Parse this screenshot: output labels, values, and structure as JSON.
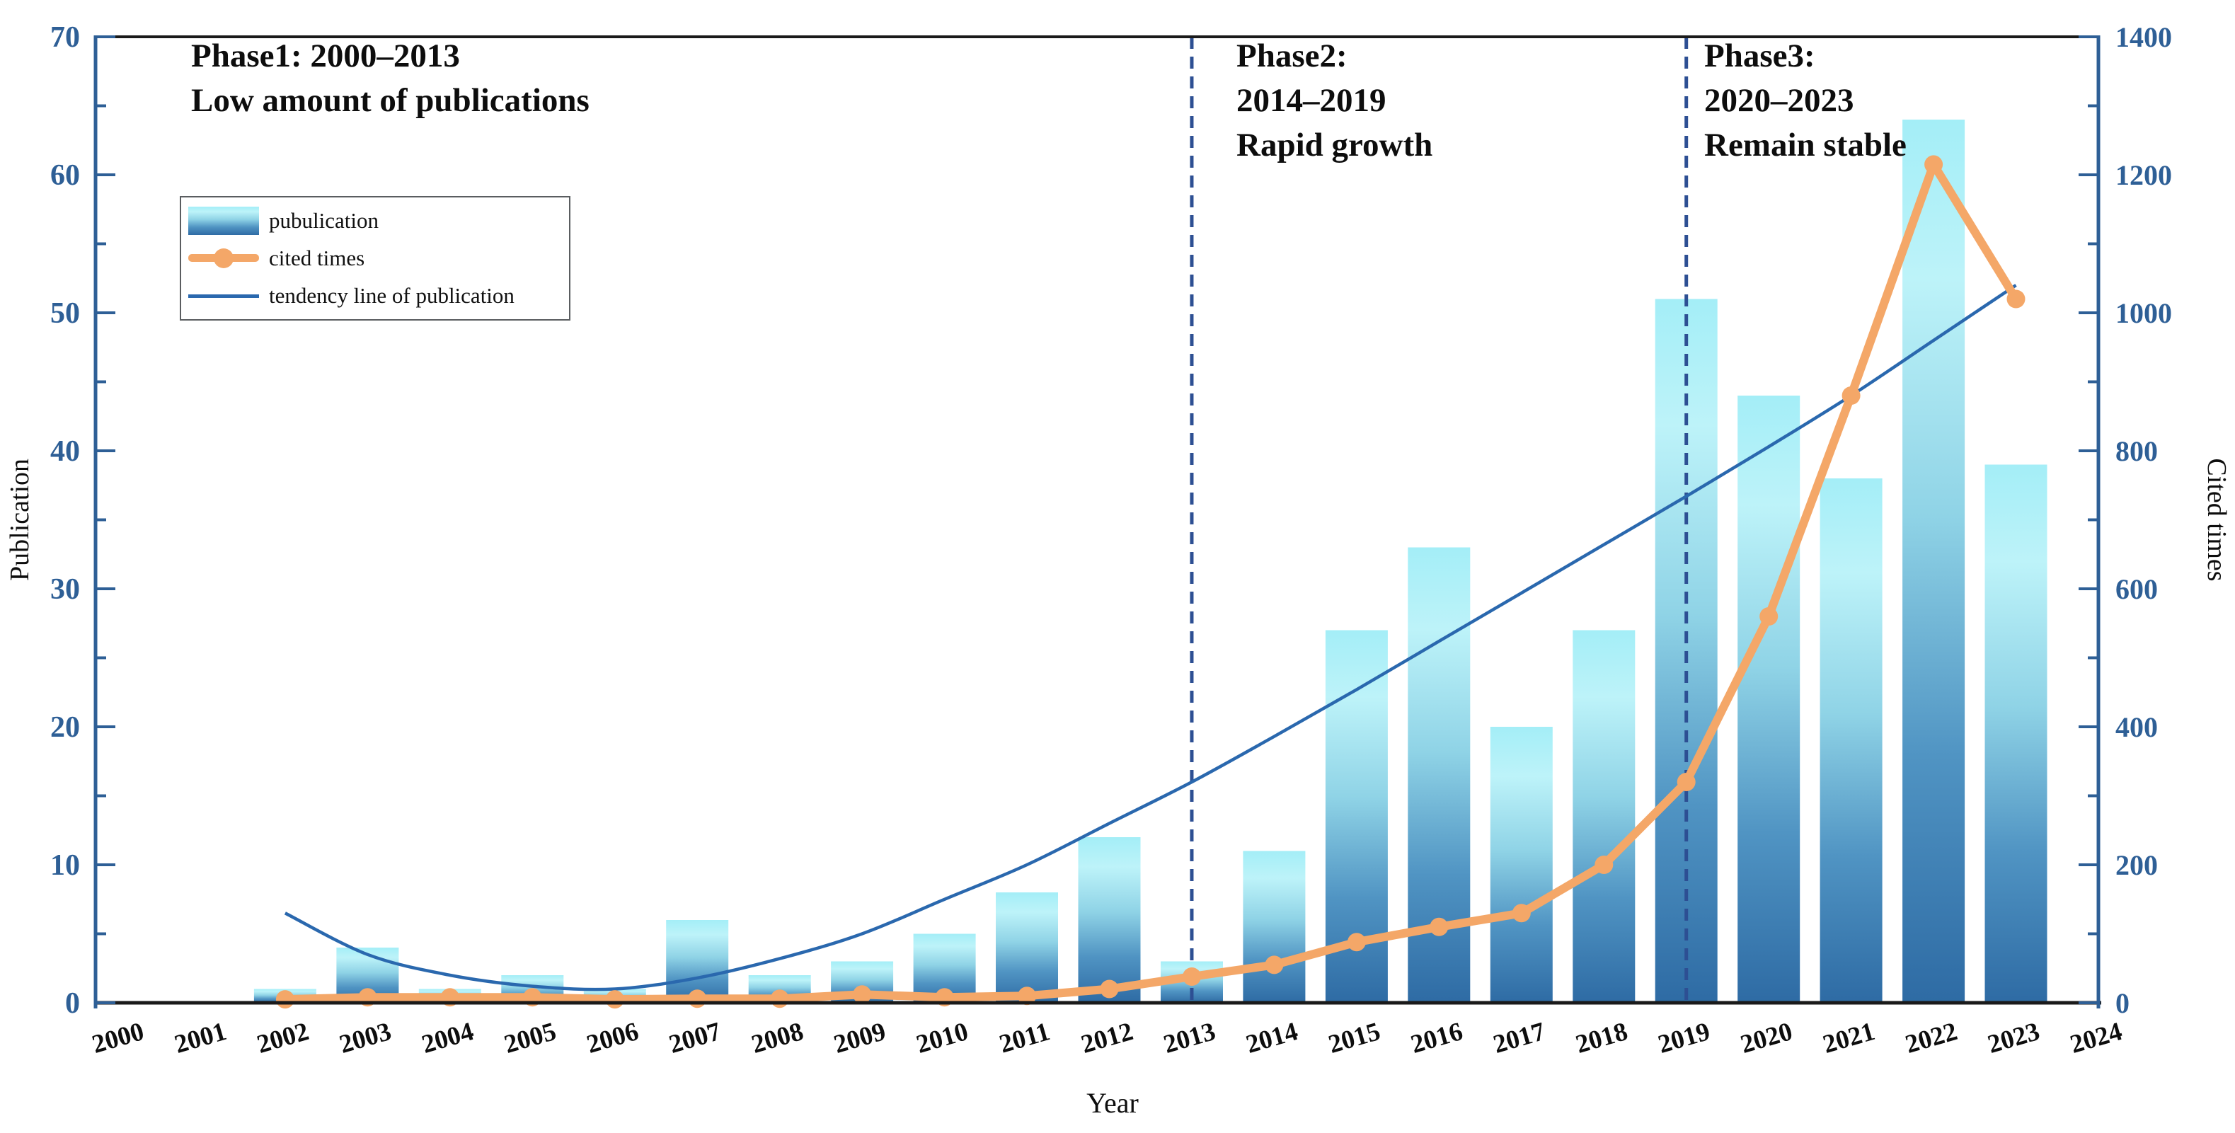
{
  "annotations": {
    "phase1": {
      "line1": "Phase1: 2000–2013",
      "line2": "Low amount of publications"
    },
    "phase2": {
      "line1": "Phase2:",
      "line2": "2014–2019",
      "line3": "Rapid growth"
    },
    "phase3": {
      "line1": "Phase3:",
      "line2": "2020–2023",
      "line3": "Remain stable"
    }
  },
  "legend": {
    "items": [
      {
        "label": "pubulication",
        "marker": "bar-swatch"
      },
      {
        "label": "cited times",
        "marker": "orange-line-with-dot"
      },
      {
        "label": "tendency line of publication",
        "marker": "blue-line"
      }
    ]
  },
  "chart_data": {
    "type": "bar+line",
    "xlabel": "Year",
    "ylabel_left": "Publication",
    "ylabel_right": "Cited times",
    "xlim": [
      2000,
      2024
    ],
    "ylim_left": [
      0,
      70
    ],
    "ylim_right": [
      0,
      1400
    ],
    "x_ticks": [
      2000,
      2001,
      2002,
      2003,
      2004,
      2005,
      2006,
      2007,
      2008,
      2009,
      2010,
      2011,
      2012,
      2013,
      2014,
      2015,
      2016,
      2017,
      2018,
      2019,
      2020,
      2021,
      2022,
      2023,
      2024
    ],
    "y_ticks_left": [
      0,
      10,
      20,
      30,
      40,
      50,
      60,
      70
    ],
    "y_minor_step_left": 5,
    "y_ticks_right": [
      0,
      200,
      400,
      600,
      800,
      1000,
      1200,
      1400
    ],
    "y_minor_step_right": 100,
    "grid": false,
    "legend_position": "upper-left",
    "categories": [
      2000,
      2001,
      2002,
      2003,
      2004,
      2005,
      2006,
      2007,
      2008,
      2009,
      2010,
      2011,
      2012,
      2013,
      2014,
      2015,
      2016,
      2017,
      2018,
      2019,
      2020,
      2021,
      2022,
      2023
    ],
    "series": [
      {
        "name": "pubulication",
        "type": "bar",
        "axis": "left",
        "values": [
          0,
          0,
          1,
          4,
          1,
          2,
          1,
          6,
          2,
          3,
          5,
          8,
          12,
          3,
          11,
          27,
          33,
          20,
          27,
          51,
          44,
          38,
          64,
          39
        ]
      },
      {
        "name": "cited times",
        "type": "line",
        "axis": "right",
        "x": [
          2002,
          2003,
          2004,
          2005,
          2006,
          2007,
          2008,
          2009,
          2010,
          2011,
          2012,
          2013,
          2014,
          2015,
          2016,
          2017,
          2018,
          2019,
          2020,
          2021,
          2022,
          2023
        ],
        "values": [
          5,
          8,
          8,
          8,
          5,
          6,
          6,
          12,
          8,
          10,
          20,
          38,
          55,
          88,
          110,
          130,
          200,
          320,
          560,
          880,
          1215,
          1020
        ]
      },
      {
        "name": "tendency line of publication",
        "type": "smooth-line",
        "axis": "left",
        "x": [
          2002,
          2003,
          2004,
          2005,
          2006,
          2007,
          2008,
          2009,
          2010,
          2011,
          2012,
          2013,
          2014,
          2015,
          2016,
          2017,
          2018,
          2019,
          2020,
          2021,
          2022,
          2023
        ],
        "values": [
          6.5,
          3.5,
          2,
          1.2,
          1,
          1.8,
          3.2,
          5,
          7.5,
          10,
          13,
          16,
          19.3,
          22.7,
          26.2,
          29.7,
          33.2,
          36.7,
          40.3,
          44,
          48,
          52
        ]
      }
    ],
    "phase_dividers_x": [
      2013,
      2019
    ],
    "colors": {
      "bar_gradient": [
        "#a4eef7",
        "#bdf3f9",
        "#8fd3e6",
        "#5094c3",
        "#2e6ba4"
      ],
      "cited_line": "#f4a768",
      "tendency_line": "#2a68ae",
      "axis_blue": "#2e5f96",
      "tick_label_blue": "#2e5f96",
      "divider_blue": "#2d4f93",
      "frame_black": "#1a1a1a",
      "x_label_color": "#0d0d0d"
    }
  }
}
